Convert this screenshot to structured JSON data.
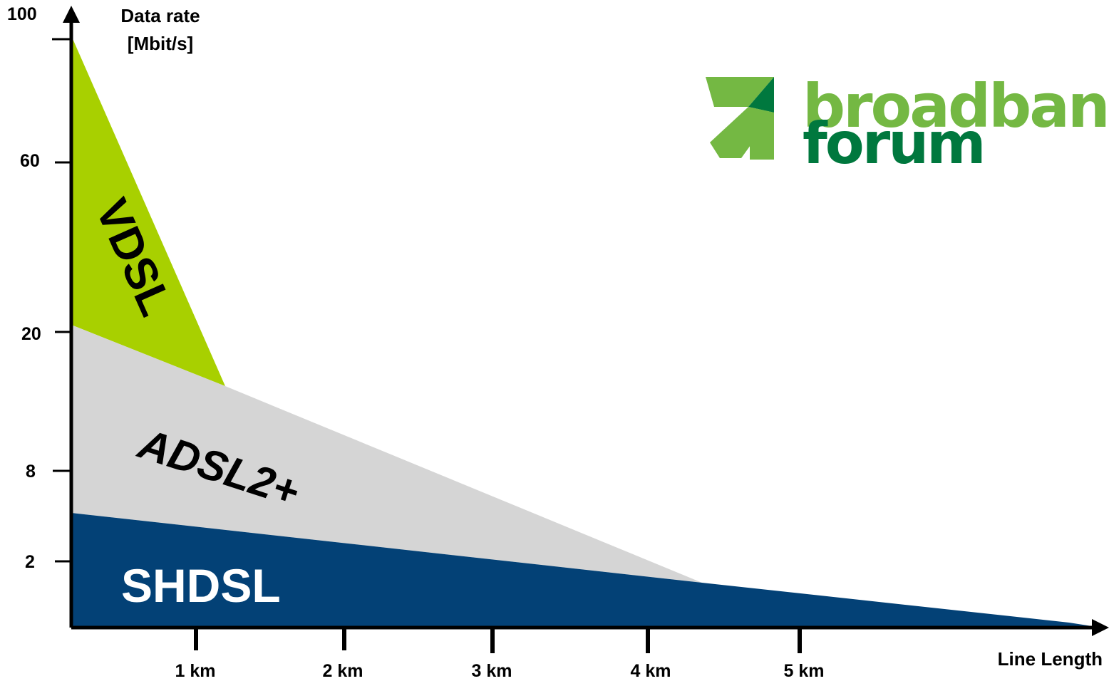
{
  "chart_data": {
    "type": "area",
    "title": "",
    "ylabel_line1": "Data rate",
    "ylabel_line2": "[Mbit/s]",
    "xlabel": "Line Length",
    "y_ticks": [
      "100",
      "60",
      "20",
      "8",
      "2"
    ],
    "x_ticks": [
      "1 km",
      "2 km",
      "3 km",
      "4 km",
      "5 km"
    ],
    "series": [
      {
        "name": "VDSL",
        "color": "#a8d000"
      },
      {
        "name": "ADSL2+",
        "color": "#d5d5d5"
      },
      {
        "name": "SHDSL",
        "color": "#034176"
      }
    ],
    "grid": false
  },
  "logo": {
    "word1": "broadband",
    "word2": "forum",
    "colors": {
      "light_green": "#74b843",
      "dark_green": "#00783e"
    }
  }
}
